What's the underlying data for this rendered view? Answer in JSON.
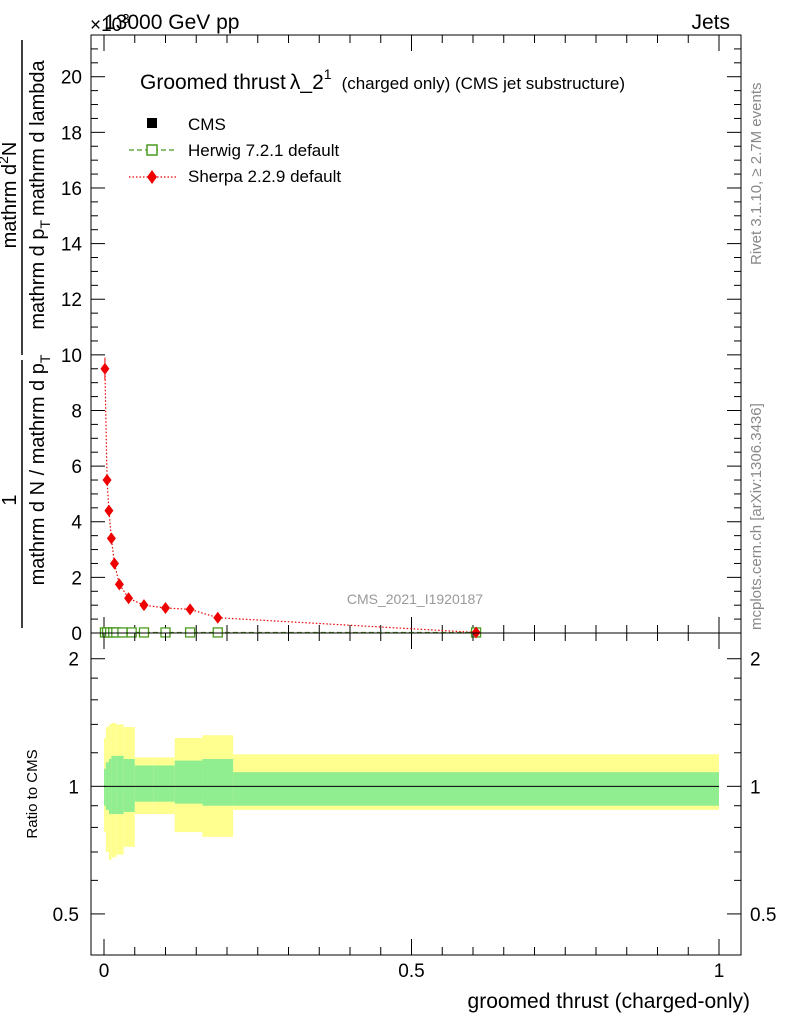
{
  "header": {
    "energy": "13000 GeV pp",
    "process": "Jets",
    "exponent_marker": "×10",
    "exponent": "3"
  },
  "side_labels": {
    "rivet": "Rivet 3.1.10, ≥ 2.7M events",
    "mcplots": "mcplots.cern.ch [arXiv:1306.3436]"
  },
  "watermark": "CMS_2021_I1920187",
  "chart_data": [
    {
      "type": "line",
      "panel": "main",
      "title": "Groomed thrust",
      "title_symbol": "λ_2",
      "title_superscript": "1",
      "title_suffix": "(charged only) (CMS jet substructure)",
      "ylabel": "1 / mathrm d N / mathrm d p_T mathrm d p_T mathrm d lambda · mathrm d²N",
      "ylabel_parts": {
        "numerator_top": "mathrm d",
        "numerator_sup": "2",
        "numerator_tail": "N",
        "denominator_lower": "mathrm d p",
        "denominator_lower_sub": "T",
        "denominator_tail": "mathrm d lambda",
        "one": "1",
        "left_denominator": "mathrm d N / mathrm d p",
        "left_denominator_sub": "T"
      },
      "xlim": [
        0,
        1
      ],
      "ylim": [
        0,
        21.5
      ],
      "y_scale_note": "×10^3",
      "yticks": [
        0,
        2,
        4,
        6,
        8,
        10,
        12,
        14,
        16,
        18,
        20
      ],
      "ytick_labels": [
        "0",
        "2",
        "4",
        "6",
        "8",
        "10",
        "12",
        "14",
        "16",
        "18",
        "20"
      ],
      "legend_position": "top-left",
      "series": [
        {
          "name": "CMS",
          "marker": "filled-square",
          "color": "#000000",
          "x": [
            0.0015,
            0.005,
            0.01,
            0.015,
            0.02,
            0.03,
            0.045,
            0.065,
            0.1,
            0.14,
            0.185,
            0.605
          ],
          "values": [
            0.02,
            0.02,
            0.02,
            0.02,
            0.02,
            0.02,
            0.02,
            0.02,
            0.02,
            0.02,
            0.02,
            0.02
          ]
        },
        {
          "name": "Herwig 7.2.1 default",
          "marker": "open-square",
          "line": "dashed",
          "color": "#4a9a1e",
          "x": [
            0.0015,
            0.005,
            0.01,
            0.015,
            0.02,
            0.03,
            0.045,
            0.065,
            0.1,
            0.14,
            0.185,
            0.605
          ],
          "values": [
            0.02,
            0.02,
            0.02,
            0.02,
            0.02,
            0.02,
            0.02,
            0.02,
            0.02,
            0.02,
            0.02,
            0.02
          ]
        },
        {
          "name": "Sherpa 2.2.9 default",
          "marker": "diamond",
          "line": "dotted",
          "color": "#ee0000",
          "x": [
            0.0015,
            0.005,
            0.008,
            0.012,
            0.017,
            0.025,
            0.04,
            0.065,
            0.1,
            0.14,
            0.185,
            0.605
          ],
          "values": [
            9.5,
            5.5,
            4.4,
            3.4,
            2.5,
            1.75,
            1.25,
            1.0,
            0.9,
            0.85,
            0.55,
            0.02
          ]
        }
      ]
    },
    {
      "type": "area",
      "panel": "ratio",
      "ylabel": "Ratio to CMS",
      "xlabel": "groomed thrust (charged-only)",
      "xlim": [
        0,
        1
      ],
      "ylim": [
        0.4,
        2.3
      ],
      "yticks": [
        0.5,
        1,
        2
      ],
      "ytick_labels": [
        "0.5",
        "1",
        "2"
      ],
      "xticks": [
        0,
        0.5,
        1
      ],
      "xtick_labels": [
        "0",
        "0.5",
        "1"
      ],
      "reference_line": 1,
      "bands": {
        "bin_edges": [
          0,
          0.003,
          0.008,
          0.012,
          0.02,
          0.032,
          0.05,
          0.08,
          0.115,
          0.16,
          0.21,
          1
        ],
        "inner_low": [
          0.9,
          0.88,
          0.86,
          0.86,
          0.86,
          0.87,
          0.92,
          0.92,
          0.91,
          0.9,
          0.9
        ],
        "inner_high": [
          1.1,
          1.14,
          1.16,
          1.18,
          1.18,
          1.16,
          1.12,
          1.12,
          1.15,
          1.16,
          1.08
        ],
        "outer_low": [
          0.78,
          0.7,
          0.67,
          0.68,
          0.69,
          0.72,
          0.86,
          0.86,
          0.78,
          0.76,
          0.88
        ],
        "outer_high": [
          1.3,
          1.38,
          1.4,
          1.41,
          1.4,
          1.38,
          1.17,
          1.17,
          1.3,
          1.32,
          1.19
        ],
        "inner_color": "#90ee90",
        "outer_color": "#ffff90"
      }
    }
  ]
}
